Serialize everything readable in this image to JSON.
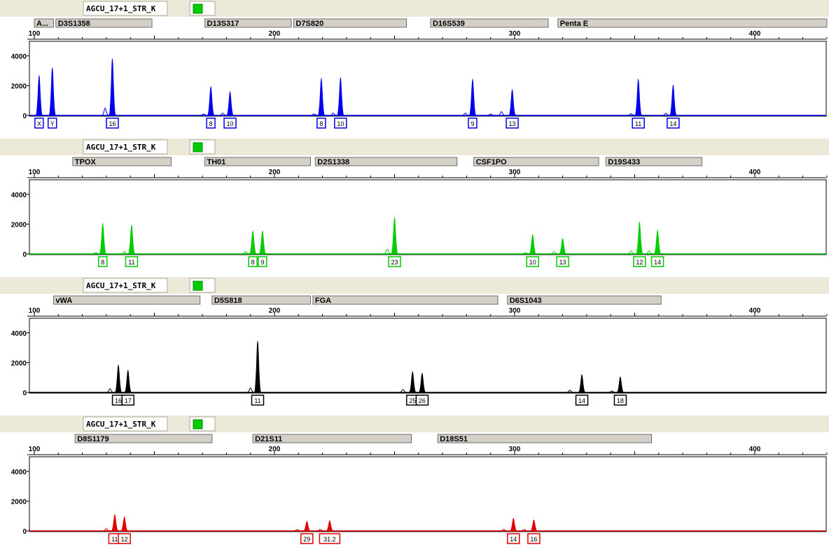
{
  "colors": {
    "blue": "#0000ee",
    "green": "#00cc00",
    "black": "#000000",
    "red": "#e00000"
  },
  "chart_data": [
    {
      "type": "line",
      "sample_label": "AGCU_17+1_STR_K",
      "dye_color": "blue",
      "x_ticks": [
        100,
        200,
        300,
        400
      ],
      "y_ticks": [
        0,
        2000,
        4000
      ],
      "xlim": [
        100,
        430
      ],
      "ylim": [
        0,
        5000
      ],
      "loci": [
        {
          "name": "A...",
          "start": 100,
          "end": 108
        },
        {
          "name": "D3S1358",
          "start": 109,
          "end": 149
        },
        {
          "name": "D13S317",
          "start": 171,
          "end": 207
        },
        {
          "name": "D7S820",
          "start": 208,
          "end": 255
        },
        {
          "name": "D16S539",
          "start": 265,
          "end": 314
        },
        {
          "name": "Penta E",
          "start": 318,
          "end": 430
        }
      ],
      "peaks": [
        {
          "x": 102,
          "height": 2700,
          "label": "X"
        },
        {
          "x": 107.5,
          "height": 3200,
          "label": "Y"
        },
        {
          "x": 132.5,
          "height": 3800,
          "label": "16"
        },
        {
          "x": 173.5,
          "height": 1950,
          "label": "8"
        },
        {
          "x": 181.5,
          "height": 1600,
          "label": "10"
        },
        {
          "x": 219.5,
          "height": 2500,
          "label": "8"
        },
        {
          "x": 227.5,
          "height": 2550,
          "label": "10"
        },
        {
          "x": 282.5,
          "height": 2450,
          "label": "9"
        },
        {
          "x": 299,
          "height": 1750,
          "label": "13"
        },
        {
          "x": 351.5,
          "height": 2450,
          "label": "11"
        },
        {
          "x": 366,
          "height": 2050,
          "label": "14"
        }
      ],
      "minor_peaks": [
        {
          "x": 129.5,
          "height": 500
        },
        {
          "x": 170.5,
          "height": 100
        },
        {
          "x": 178.5,
          "height": 150
        },
        {
          "x": 216.5,
          "height": 100
        },
        {
          "x": 224.5,
          "height": 150
        },
        {
          "x": 279.5,
          "height": 150
        },
        {
          "x": 290,
          "height": 100
        },
        {
          "x": 294.5,
          "height": 250
        },
        {
          "x": 348.5,
          "height": 120
        },
        {
          "x": 363,
          "height": 150
        }
      ]
    },
    {
      "type": "line",
      "sample_label": "AGCU_17+1_STR_K",
      "dye_color": "green",
      "x_ticks": [
        100,
        200,
        300,
        400
      ],
      "y_ticks": [
        0,
        2000,
        4000
      ],
      "xlim": [
        100,
        430
      ],
      "ylim": [
        0,
        5000
      ],
      "loci": [
        {
          "name": "TPOX",
          "start": 116,
          "end": 157
        },
        {
          "name": "TH01",
          "start": 171,
          "end": 215
        },
        {
          "name": "D2S1338",
          "start": 217,
          "end": 276
        },
        {
          "name": "CSF1PO",
          "start": 283,
          "end": 335
        },
        {
          "name": "D19S433",
          "start": 338,
          "end": 378
        }
      ],
      "peaks": [
        {
          "x": 128.5,
          "height": 2050,
          "label": "8"
        },
        {
          "x": 140.5,
          "height": 1950,
          "label": "11"
        },
        {
          "x": 191,
          "height": 1550,
          "label": "8"
        },
        {
          "x": 195,
          "height": 1550,
          "label": "9"
        },
        {
          "x": 250,
          "height": 2450,
          "label": "23"
        },
        {
          "x": 307.5,
          "height": 1300,
          "label": "10"
        },
        {
          "x": 320,
          "height": 1050,
          "label": "13"
        },
        {
          "x": 352,
          "height": 2150,
          "label": "12"
        },
        {
          "x": 359.5,
          "height": 1600,
          "label": "14"
        }
      ],
      "minor_peaks": [
        {
          "x": 125.5,
          "height": 100
        },
        {
          "x": 137.5,
          "height": 150
        },
        {
          "x": 188,
          "height": 150
        },
        {
          "x": 247,
          "height": 300
        },
        {
          "x": 304.5,
          "height": 100
        },
        {
          "x": 316.5,
          "height": 150
        },
        {
          "x": 348.5,
          "height": 200
        },
        {
          "x": 356,
          "height": 200
        }
      ]
    },
    {
      "type": "line",
      "sample_label": "AGCU_17+1_STR_K",
      "dye_color": "black",
      "x_ticks": [
        100,
        200,
        300,
        400
      ],
      "y_ticks": [
        0,
        2000,
        4000
      ],
      "xlim": [
        100,
        430
      ],
      "ylim": [
        0,
        5000
      ],
      "loci": [
        {
          "name": "vWA",
          "start": 108,
          "end": 169
        },
        {
          "name": "D5S818",
          "start": 174,
          "end": 215
        },
        {
          "name": "FGA",
          "start": 216,
          "end": 293
        },
        {
          "name": "D6S1043",
          "start": 297,
          "end": 361
        }
      ],
      "peaks": [
        {
          "x": 135,
          "height": 1850,
          "label": "16"
        },
        {
          "x": 139,
          "height": 1500,
          "label": "17"
        },
        {
          "x": 193,
          "height": 3450,
          "label": "11"
        },
        {
          "x": 257.5,
          "height": 1400,
          "label": "25"
        },
        {
          "x": 261.5,
          "height": 1300,
          "label": "26"
        },
        {
          "x": 328,
          "height": 1200,
          "label": "14"
        },
        {
          "x": 344,
          "height": 1050,
          "label": "18"
        }
      ],
      "minor_peaks": [
        {
          "x": 131.5,
          "height": 250
        },
        {
          "x": 190,
          "height": 300
        },
        {
          "x": 253.5,
          "height": 200
        },
        {
          "x": 323,
          "height": 150
        },
        {
          "x": 340.5,
          "height": 100
        }
      ]
    },
    {
      "type": "line",
      "sample_label": "AGCU_17+1_STR_K",
      "dye_color": "red",
      "x_ticks": [
        100,
        200,
        300,
        400
      ],
      "y_ticks": [
        0,
        2000,
        4000
      ],
      "xlim": [
        100,
        430
      ],
      "ylim": [
        0,
        5000
      ],
      "loci": [
        {
          "name": "D8S1179",
          "start": 117,
          "end": 174
        },
        {
          "name": "D21S11",
          "start": 191,
          "end": 257
        },
        {
          "name": "D18S51",
          "start": 268,
          "end": 357
        }
      ],
      "peaks": [
        {
          "x": 133.5,
          "height": 1100,
          "label": "11"
        },
        {
          "x": 137.5,
          "height": 950,
          "label": "12"
        },
        {
          "x": 213.5,
          "height": 650,
          "label": "29"
        },
        {
          "x": 223,
          "height": 700,
          "label": "31.2"
        },
        {
          "x": 299.5,
          "height": 850,
          "label": "14"
        },
        {
          "x": 308,
          "height": 750,
          "label": "16"
        }
      ],
      "minor_peaks": [
        {
          "x": 130,
          "height": 150
        },
        {
          "x": 209.5,
          "height": 100
        },
        {
          "x": 219,
          "height": 100
        },
        {
          "x": 295.5,
          "height": 100
        },
        {
          "x": 304,
          "height": 100
        }
      ]
    }
  ]
}
